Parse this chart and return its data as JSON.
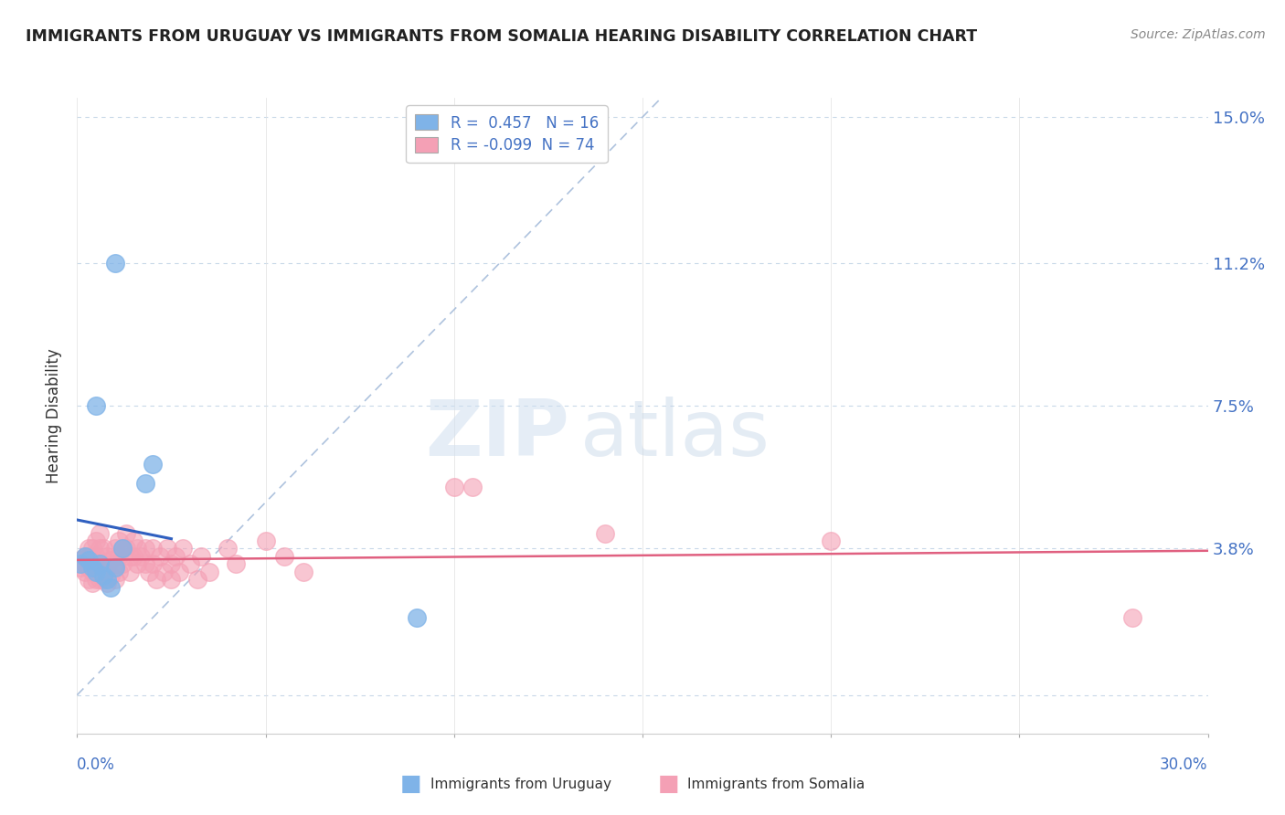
{
  "title": "IMMIGRANTS FROM URUGUAY VS IMMIGRANTS FROM SOMALIA HEARING DISABILITY CORRELATION CHART",
  "source": "Source: ZipAtlas.com",
  "ylabel": "Hearing Disability",
  "yticks": [
    0.0,
    0.038,
    0.075,
    0.112,
    0.15
  ],
  "ytick_labels": [
    "",
    "3.8%",
    "7.5%",
    "11.2%",
    "15.0%"
  ],
  "xlim": [
    0.0,
    0.3
  ],
  "ylim": [
    -0.01,
    0.155
  ],
  "uruguay_color": "#7fb3e8",
  "somalia_color": "#f4a0b5",
  "uruguay_line_color": "#3060c0",
  "somalia_line_color": "#e06080",
  "diagonal_color": "#a0b8d8",
  "uruguay_R": 0.457,
  "uruguay_N": 16,
  "somalia_R": -0.099,
  "somalia_N": 74,
  "legend_label_uruguay": "Immigrants from Uruguay",
  "legend_label_somalia": "Immigrants from Somalia",
  "watermark_zip": "ZIP",
  "watermark_atlas": "atlas",
  "uruguay_scatter": [
    [
      0.001,
      0.034
    ],
    [
      0.002,
      0.036
    ],
    [
      0.003,
      0.035
    ],
    [
      0.004,
      0.033
    ],
    [
      0.005,
      0.032
    ],
    [
      0.006,
      0.034
    ],
    [
      0.007,
      0.031
    ],
    [
      0.008,
      0.03
    ],
    [
      0.009,
      0.028
    ],
    [
      0.01,
      0.033
    ],
    [
      0.012,
      0.038
    ],
    [
      0.018,
      0.055
    ],
    [
      0.02,
      0.06
    ],
    [
      0.01,
      0.112
    ],
    [
      0.005,
      0.075
    ],
    [
      0.09,
      0.02
    ]
  ],
  "somalia_scatter": [
    [
      0.001,
      0.035
    ],
    [
      0.001,
      0.033
    ],
    [
      0.002,
      0.036
    ],
    [
      0.002,
      0.034
    ],
    [
      0.002,
      0.032
    ],
    [
      0.003,
      0.038
    ],
    [
      0.003,
      0.036
    ],
    [
      0.003,
      0.033
    ],
    [
      0.003,
      0.03
    ],
    [
      0.004,
      0.038
    ],
    [
      0.004,
      0.035
    ],
    [
      0.004,
      0.032
    ],
    [
      0.004,
      0.029
    ],
    [
      0.005,
      0.04
    ],
    [
      0.005,
      0.036
    ],
    [
      0.005,
      0.033
    ],
    [
      0.005,
      0.03
    ],
    [
      0.006,
      0.042
    ],
    [
      0.006,
      0.038
    ],
    [
      0.006,
      0.034
    ],
    [
      0.006,
      0.03
    ],
    [
      0.007,
      0.038
    ],
    [
      0.007,
      0.034
    ],
    [
      0.007,
      0.03
    ],
    [
      0.008,
      0.036
    ],
    [
      0.008,
      0.033
    ],
    [
      0.008,
      0.029
    ],
    [
      0.009,
      0.035
    ],
    [
      0.009,
      0.031
    ],
    [
      0.01,
      0.038
    ],
    [
      0.01,
      0.034
    ],
    [
      0.01,
      0.03
    ],
    [
      0.011,
      0.04
    ],
    [
      0.011,
      0.036
    ],
    [
      0.011,
      0.032
    ],
    [
      0.012,
      0.038
    ],
    [
      0.012,
      0.034
    ],
    [
      0.013,
      0.042
    ],
    [
      0.013,
      0.038
    ],
    [
      0.014,
      0.036
    ],
    [
      0.014,
      0.032
    ],
    [
      0.015,
      0.04
    ],
    [
      0.015,
      0.036
    ],
    [
      0.016,
      0.038
    ],
    [
      0.016,
      0.034
    ],
    [
      0.017,
      0.036
    ],
    [
      0.018,
      0.038
    ],
    [
      0.018,
      0.034
    ],
    [
      0.019,
      0.032
    ],
    [
      0.02,
      0.038
    ],
    [
      0.02,
      0.034
    ],
    [
      0.021,
      0.03
    ],
    [
      0.022,
      0.036
    ],
    [
      0.023,
      0.032
    ],
    [
      0.024,
      0.038
    ],
    [
      0.025,
      0.034
    ],
    [
      0.025,
      0.03
    ],
    [
      0.026,
      0.036
    ],
    [
      0.027,
      0.032
    ],
    [
      0.028,
      0.038
    ],
    [
      0.03,
      0.034
    ],
    [
      0.032,
      0.03
    ],
    [
      0.033,
      0.036
    ],
    [
      0.035,
      0.032
    ],
    [
      0.04,
      0.038
    ],
    [
      0.042,
      0.034
    ],
    [
      0.05,
      0.04
    ],
    [
      0.055,
      0.036
    ],
    [
      0.06,
      0.032
    ],
    [
      0.1,
      0.054
    ],
    [
      0.105,
      0.054
    ],
    [
      0.14,
      0.042
    ],
    [
      0.2,
      0.04
    ],
    [
      0.28,
      0.02
    ]
  ]
}
